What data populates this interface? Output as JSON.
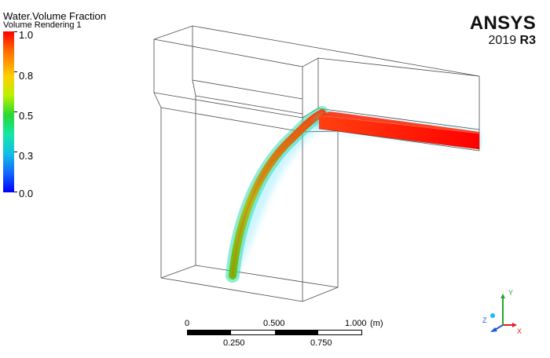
{
  "legend": {
    "title": "Water.Volume Fraction",
    "subtitle": "Volume Rendering 1",
    "colors": [
      "#ff0000",
      "#ff6a00",
      "#ffd000",
      "#b8f000",
      "#29d832",
      "#15e6a8",
      "#12bfe6",
      "#1268ff",
      "#0000ff"
    ],
    "ticks": [
      "1.0",
      "0.8",
      "0.5",
      "0.3",
      "0.0"
    ]
  },
  "brand": {
    "name": "ANSYS",
    "version_year": "2019",
    "version_release": "R3"
  },
  "scale": {
    "top_labels": [
      "0",
      "0.500",
      "1.000"
    ],
    "unit": "(m)",
    "bottom_labels": [
      "0.250",
      "0.750"
    ]
  },
  "triad": {
    "axis_y": "Y",
    "axis_x": "X",
    "axis_z": "Z",
    "color_y": "#22aa22",
    "color_x": "#dd2222",
    "color_z": "#2255dd"
  }
}
